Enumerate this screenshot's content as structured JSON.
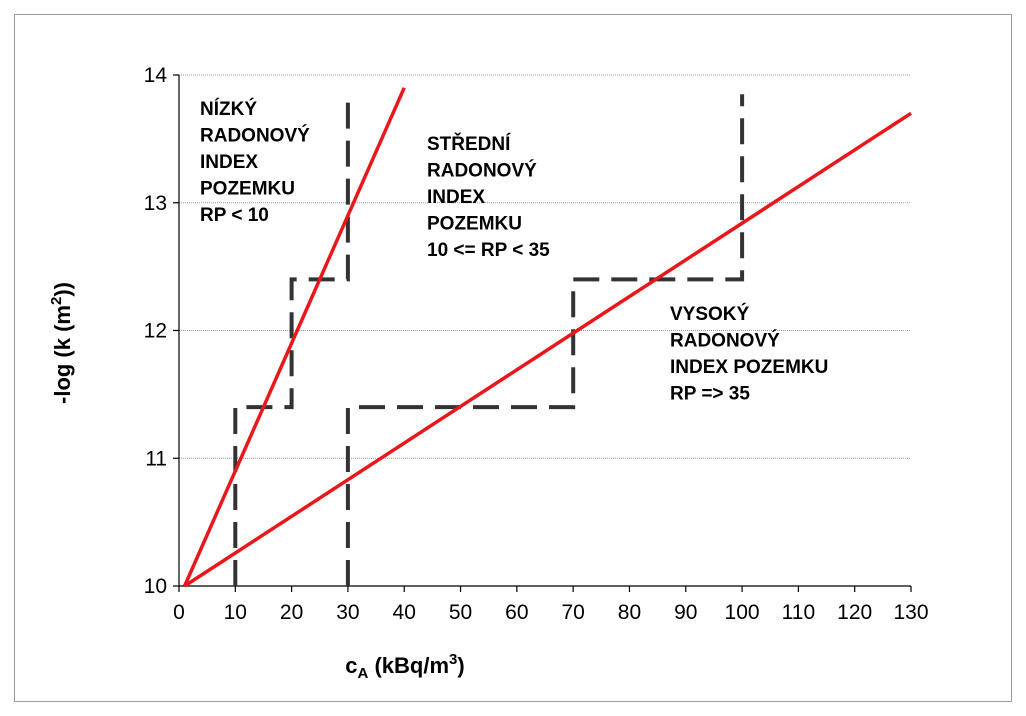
{
  "chart_data": {
    "type": "line",
    "title": "",
    "xlabel": {
      "main": "c",
      "sub": "A",
      "rest": " (kBq/m",
      "sup": "3",
      "end": ")"
    },
    "ylabel": {
      "main": "-log (k (m",
      "sup": "2",
      "end": "))"
    },
    "xlim": [
      0,
      130
    ],
    "ylim": [
      10,
      14
    ],
    "x_ticks": [
      0,
      10,
      20,
      30,
      40,
      50,
      60,
      70,
      80,
      90,
      100,
      110,
      120,
      130
    ],
    "y_ticks": [
      10,
      11,
      12,
      13,
      14
    ],
    "grid": {
      "horizontal": true,
      "vertical": false
    },
    "colors": {
      "boundary_line": "#e8171b",
      "step_line": "#333333",
      "grid": "#9a9a9a"
    },
    "boundary_lines": [
      {
        "points": [
          [
            1,
            10.0
          ],
          [
            40,
            13.9
          ]
        ]
      },
      {
        "points": [
          [
            1,
            10.0
          ],
          [
            130,
            13.7
          ]
        ]
      }
    ],
    "step_lines": [
      {
        "points": [
          [
            10,
            10.0
          ],
          [
            10,
            11.4
          ],
          [
            20,
            11.4
          ],
          [
            20,
            12.4
          ],
          [
            30,
            12.4
          ],
          [
            30,
            13.85
          ]
        ]
      },
      {
        "points": [
          [
            30,
            10.0
          ],
          [
            30,
            11.4
          ],
          [
            70,
            11.4
          ],
          [
            70,
            12.4
          ],
          [
            100,
            12.4
          ],
          [
            100,
            13.85
          ]
        ]
      }
    ],
    "annotations": [
      {
        "id": "low",
        "lines": [
          "NÍZKÝ",
          "RADONOVÝ",
          "INDEX",
          "POZEMKU",
          "RP < 10"
        ]
      },
      {
        "id": "medium",
        "lines": [
          "STŘEDNÍ",
          "RADONOVÝ",
          "INDEX",
          "POZEMKU",
          "10 <= RP < 35"
        ]
      },
      {
        "id": "high",
        "lines": [
          "VYSOKÝ",
          "RADONOVÝ",
          "INDEX POZEMKU",
          "RP => 35"
        ]
      }
    ]
  }
}
